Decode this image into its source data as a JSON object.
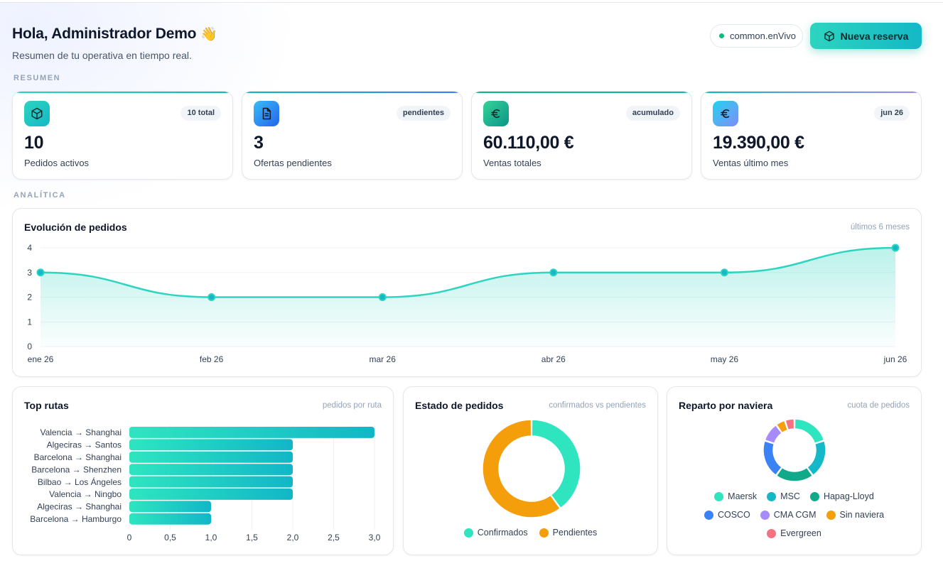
{
  "header": {
    "greeting": "Hola, Administrador Demo",
    "greeting_emoji": "👋",
    "subtitle": "Resumen de tu operativa en tiempo real.",
    "live_label": "common.enVivo",
    "new_booking_label": "Nueva reserva"
  },
  "sections": {
    "summary": "RESUMEN",
    "analytics": "ANALÍTICA"
  },
  "kpis": [
    {
      "icon": "package-icon",
      "badge": "10 total",
      "value": "10",
      "label": "Pedidos activos",
      "accent": "#2dd4bf"
    },
    {
      "icon": "document-icon",
      "badge": "pendientes",
      "value": "3",
      "label": "Ofertas pendientes",
      "accent": "#3b82f6"
    },
    {
      "icon": "euro-icon",
      "badge": "acumulado",
      "value": "60.110,00 €",
      "label": "Ventas totales",
      "accent": "#10b981"
    },
    {
      "icon": "euro-icon",
      "badge": "jun 26",
      "value": "19.390,00 €",
      "label": "Ventas último mes",
      "accent": "#a78bfa"
    }
  ],
  "evolution": {
    "title": "Evolución de pedidos",
    "subtitle": "últimos 6 meses"
  },
  "top_routes": {
    "title": "Top rutas",
    "subtitle": "pedidos por ruta"
  },
  "order_status": {
    "title": "Estado de pedidos",
    "subtitle": "confirmados vs pendientes"
  },
  "carrier_share": {
    "title": "Reparto por naviera",
    "subtitle": "cuota de pedidos"
  },
  "chart_data": [
    {
      "type": "area",
      "title": "Evolución de pedidos",
      "categories": [
        "ene 26",
        "feb 26",
        "mar 26",
        "abr 26",
        "may 26",
        "jun 26"
      ],
      "values": [
        3,
        2,
        2,
        3,
        3,
        4
      ],
      "ylim": [
        0,
        4
      ],
      "yticks": [
        "0",
        "1",
        "2",
        "3",
        "4"
      ],
      "grid": true,
      "color": "#2dd4bf"
    },
    {
      "type": "bar",
      "orientation": "horizontal",
      "title": "Top rutas",
      "categories": [
        "Valencia → Shanghai",
        "Algeciras → Santos",
        "Barcelona → Shanghai",
        "Barcelona → Shenzhen",
        "Bilbao → Los Ángeles",
        "Valencia → Ningbo",
        "Algeciras → Shanghai",
        "Barcelona → Hamburgo"
      ],
      "values": [
        3,
        2,
        2,
        2,
        2,
        2,
        1,
        1
      ],
      "xlim": [
        0,
        3
      ],
      "xticks": [
        "0",
        "0,5",
        "1,0",
        "1,5",
        "2,0",
        "2,5",
        "3,0"
      ],
      "grid": true
    },
    {
      "type": "pie",
      "title": "Estado de pedidos",
      "donut": true,
      "labels": [
        "Confirmados",
        "Pendientes"
      ],
      "values": [
        4,
        6
      ],
      "colors": [
        "#2ee5c0",
        "#f59e0b"
      ]
    },
    {
      "type": "pie",
      "title": "Reparto por naviera",
      "donut": true,
      "labels": [
        "Maersk",
        "MSC",
        "Hapag-Lloyd",
        "COSCO",
        "CMA CGM",
        "Sin naviera",
        "Evergreen"
      ],
      "values": [
        2,
        2,
        2,
        2,
        1,
        0.5,
        0.5
      ],
      "colors": [
        "#2ee5c0",
        "#14b8c6",
        "#10a98a",
        "#3b82f6",
        "#a78bfa",
        "#f59e0b",
        "#f87181"
      ]
    }
  ]
}
